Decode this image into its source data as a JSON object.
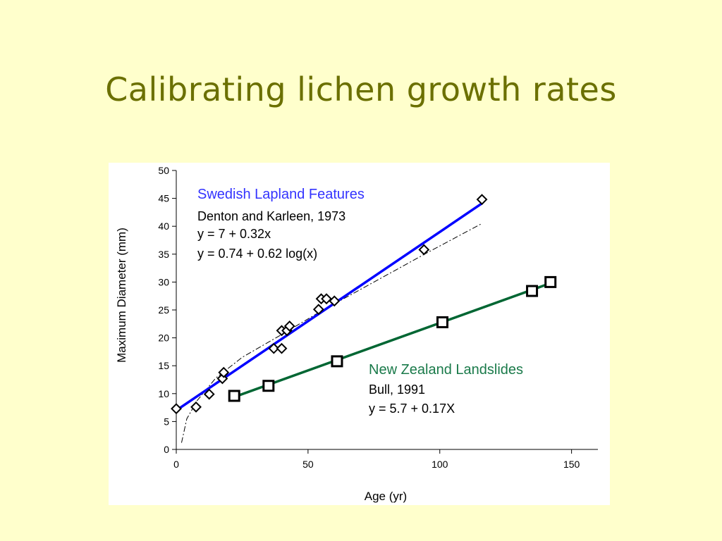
{
  "slide": {
    "title": "Calibrating lichen growth rates"
  },
  "colors": {
    "background": "#ffffcc",
    "title": "#6b7000",
    "swedish": "#0000ff",
    "newzealand": "#006633",
    "log_curve": "#000000"
  },
  "annotations": {
    "swedish_title": "Swedish Lapland Features",
    "swedish_source": "Denton and Karleen, 1973",
    "swedish_eq1": "y = 7 + 0.32x",
    "swedish_eq2": "y = 0.74 + 0.62 log(x)",
    "nz_title": "New Zealand Landslides",
    "nz_source": "Bull, 1991",
    "nz_eq": "y = 5.7 + 0.17X"
  },
  "chart_data": {
    "type": "scatter",
    "xlabel": "Age (yr)",
    "ylabel": "Maximum Diameter (mm)",
    "xlim": [
      0,
      160
    ],
    "ylim": [
      0,
      50
    ],
    "xticks": [
      "0",
      "50",
      "100",
      "150"
    ],
    "yticks": [
      "0",
      "5",
      "10",
      "15",
      "20",
      "25",
      "30",
      "35",
      "40",
      "45",
      "50"
    ],
    "grid": false,
    "series": [
      {
        "name": "Swedish Lapland Features",
        "marker": "diamond",
        "color": "#0000ff",
        "points": [
          [
            0,
            7.3
          ],
          [
            7.5,
            7.6
          ],
          [
            12.5,
            9.9
          ],
          [
            17.5,
            12.7
          ],
          [
            18,
            13.8
          ],
          [
            37,
            18.1
          ],
          [
            40,
            18.1
          ],
          [
            40,
            21.3
          ],
          [
            42,
            21.3
          ],
          [
            43,
            22.1
          ],
          [
            54,
            25.1
          ],
          [
            55,
            27.0
          ],
          [
            57,
            27.0
          ],
          [
            60,
            26.6
          ],
          [
            94,
            35.8
          ],
          [
            116,
            44.8
          ]
        ],
        "fit_linear": {
          "x": [
            0,
            116
          ],
          "y": [
            7,
            44.1
          ]
        },
        "fit_log": {
          "x": [
            2,
            4,
            8,
            15,
            25,
            40,
            55,
            75,
            95,
            116
          ],
          "y": [
            1.2,
            5.5,
            8.8,
            12.8,
            16.5,
            20.6,
            24.8,
            30.0,
            35.2,
            40.5
          ]
        }
      },
      {
        "name": "New Zealand Landslides",
        "marker": "square",
        "color": "#006633",
        "points": [
          [
            22,
            9.6
          ],
          [
            35,
            11.4
          ],
          [
            61,
            15.8
          ],
          [
            101,
            22.8
          ],
          [
            135,
            28.4
          ],
          [
            142,
            30.0
          ]
        ],
        "fit_linear": {
          "x": [
            22,
            142
          ],
          "y": [
            9.4,
            29.8
          ]
        }
      }
    ]
  }
}
